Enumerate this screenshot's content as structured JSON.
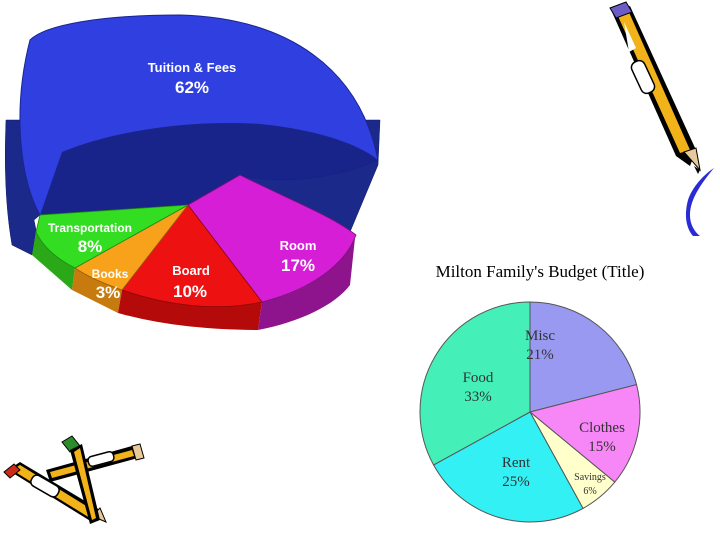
{
  "colors": {
    "tuition": "#2f3fe0",
    "room": "#d61ed6",
    "board": "#ee1111",
    "books": "#f7a21a",
    "transportation": "#33dd22",
    "food": "#44f0b8",
    "misc": "#9999f2",
    "clothes": "#f787f7",
    "savings": "#ffffcc",
    "rent": "#33f0f5"
  },
  "chart_data": [
    {
      "type": "pie",
      "style": "3d",
      "title": "",
      "slices": [
        {
          "label": "Tuition & Fees",
          "value": 62,
          "value_label": "62%"
        },
        {
          "label": "Room",
          "value": 17,
          "value_label": "17%"
        },
        {
          "label": "Board",
          "value": 10,
          "value_label": "10%"
        },
        {
          "label": "Books",
          "value": 3,
          "value_label": "3%"
        },
        {
          "label": "Transportation",
          "value": 8,
          "value_label": "8%"
        }
      ]
    },
    {
      "type": "pie",
      "title": "Milton Family's Budget (Title)",
      "slices": [
        {
          "label": "Misc",
          "value": 21,
          "value_label": "21%"
        },
        {
          "label": "Clothes",
          "value": 15,
          "value_label": "15%"
        },
        {
          "label": "Savings",
          "value": 6,
          "value_label": "6%"
        },
        {
          "label": "Rent",
          "value": 25,
          "value_label": "25%"
        },
        {
          "label": "Food",
          "value": 33,
          "value_label": "33%"
        }
      ]
    }
  ],
  "decor": {
    "top_right": "pencil-icon",
    "bottom_left": "pencils-icon"
  }
}
